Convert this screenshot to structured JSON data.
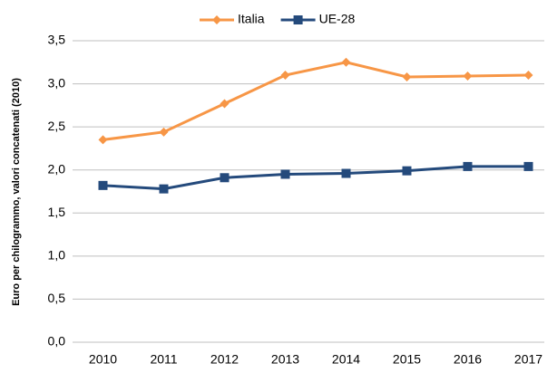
{
  "chart_data": {
    "type": "line",
    "y_label": "Euro per chilogrammo, valori concatenati (2010)",
    "categories": [
      "2010",
      "2011",
      "2012",
      "2013",
      "2014",
      "2015",
      "2016",
      "2017"
    ],
    "series": [
      {
        "name": "Italia",
        "color": "#f79646",
        "marker": "diamond",
        "values": [
          2.35,
          2.44,
          2.77,
          3.1,
          3.25,
          3.08,
          3.09,
          3.1
        ]
      },
      {
        "name": "UE-28",
        "color": "#244a7c",
        "marker": "square",
        "values": [
          1.82,
          1.78,
          1.91,
          1.95,
          1.96,
          1.99,
          2.04,
          2.04
        ]
      }
    ],
    "ylim": [
      0,
      3.5
    ],
    "yticks": [
      {
        "value": 0,
        "label": "0,0"
      },
      {
        "value": 0.5,
        "label": "0,5"
      },
      {
        "value": 1,
        "label": "1,0"
      },
      {
        "value": 1.5,
        "label": "1,5"
      },
      {
        "value": 2,
        "label": "2,0"
      },
      {
        "value": 2.5,
        "label": "2,5"
      },
      {
        "value": 3,
        "label": "3,0"
      },
      {
        "value": 3.5,
        "label": "3,5"
      }
    ],
    "grid": true,
    "legend": "top"
  }
}
